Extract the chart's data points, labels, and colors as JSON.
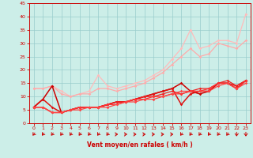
{
  "title": "",
  "xlabel": "Vent moyen/en rafales ( km/h )",
  "xlim": [
    -0.5,
    23.5
  ],
  "ylim": [
    0,
    45
  ],
  "yticks": [
    0,
    5,
    10,
    15,
    20,
    25,
    30,
    35,
    40,
    45
  ],
  "xticks": [
    0,
    1,
    2,
    3,
    4,
    5,
    6,
    7,
    8,
    9,
    10,
    11,
    12,
    13,
    14,
    15,
    16,
    17,
    18,
    19,
    20,
    21,
    22,
    23
  ],
  "bg_color": "#cceee8",
  "grid_color": "#99cccc",
  "lines": [
    {
      "x": [
        0,
        1,
        2,
        3,
        4,
        5,
        6,
        7,
        8,
        9,
        10,
        11,
        12,
        13,
        14,
        15,
        16,
        17,
        18,
        19,
        20,
        21,
        22,
        23
      ],
      "y": [
        13,
        13,
        14,
        12,
        10,
        11,
        12,
        18,
        14,
        13,
        14,
        15,
        16,
        18,
        20,
        24,
        28,
        35,
        28,
        29,
        31,
        31,
        30,
        41
      ],
      "color": "#ffbbbb",
      "lw": 0.9,
      "marker": "D",
      "ms": 1.8
    },
    {
      "x": [
        0,
        1,
        2,
        3,
        4,
        5,
        6,
        7,
        8,
        9,
        10,
        11,
        12,
        13,
        14,
        15,
        16,
        17,
        18,
        19,
        20,
        21,
        22,
        23
      ],
      "y": [
        13,
        13,
        14,
        11,
        10,
        11,
        11,
        13,
        13,
        12,
        13,
        14,
        15,
        17,
        19,
        22,
        25,
        28,
        25,
        26,
        30,
        29,
        28,
        31
      ],
      "color": "#ffaaaa",
      "lw": 0.9,
      "marker": "D",
      "ms": 1.8
    },
    {
      "x": [
        0,
        1,
        2,
        3,
        4,
        5,
        6,
        7,
        8,
        9,
        10,
        11,
        12,
        13,
        14,
        15,
        16,
        17,
        18,
        19,
        20,
        21,
        22,
        23
      ],
      "y": [
        6,
        9,
        14,
        4,
        5,
        6,
        6,
        6,
        7,
        8,
        8,
        9,
        10,
        11,
        12,
        13,
        15,
        12,
        11,
        12,
        15,
        15,
        13,
        16
      ],
      "color": "#cc0000",
      "lw": 1.1,
      "marker": "D",
      "ms": 1.8
    },
    {
      "x": [
        0,
        1,
        2,
        3,
        4,
        5,
        6,
        7,
        8,
        9,
        10,
        11,
        12,
        13,
        14,
        15,
        16,
        17,
        18,
        19,
        20,
        21,
        22,
        23
      ],
      "y": [
        6,
        9,
        6,
        4,
        5,
        6,
        6,
        6,
        7,
        8,
        8,
        9,
        10,
        11,
        12,
        13,
        7,
        11,
        12,
        12,
        15,
        15,
        14,
        16
      ],
      "color": "#dd1111",
      "lw": 1.1,
      "marker": "D",
      "ms": 1.8
    },
    {
      "x": [
        0,
        1,
        2,
        3,
        4,
        5,
        6,
        7,
        8,
        9,
        10,
        11,
        12,
        13,
        14,
        15,
        16,
        17,
        18,
        19,
        20,
        21,
        22,
        23
      ],
      "y": [
        6,
        6,
        4,
        4,
        5,
        6,
        6,
        6,
        7,
        8,
        8,
        9,
        10,
        10,
        11,
        12,
        11,
        12,
        13,
        13,
        15,
        16,
        14,
        16
      ],
      "color": "#ee2222",
      "lw": 0.9,
      "marker": "D",
      "ms": 1.8
    },
    {
      "x": [
        0,
        1,
        2,
        3,
        4,
        5,
        6,
        7,
        8,
        9,
        10,
        11,
        12,
        13,
        14,
        15,
        16,
        17,
        18,
        19,
        20,
        21,
        22,
        23
      ],
      "y": [
        6,
        6,
        4,
        4,
        5,
        6,
        6,
        6,
        7,
        7,
        8,
        9,
        9,
        10,
        10,
        11,
        11,
        12,
        12,
        13,
        15,
        15,
        13,
        16
      ],
      "color": "#ff3333",
      "lw": 0.9,
      "marker": "D",
      "ms": 1.8
    },
    {
      "x": [
        0,
        1,
        2,
        3,
        4,
        5,
        6,
        7,
        8,
        9,
        10,
        11,
        12,
        13,
        14,
        15,
        16,
        17,
        18,
        19,
        20,
        21,
        22,
        23
      ],
      "y": [
        6,
        6,
        4,
        4,
        5,
        5,
        6,
        6,
        6,
        7,
        8,
        8,
        9,
        9,
        10,
        11,
        12,
        12,
        12,
        12,
        14,
        15,
        13,
        15
      ],
      "color": "#ff4444",
      "lw": 0.9,
      "marker": "D",
      "ms": 1.8
    }
  ],
  "arrow_angles": [
    225,
    225,
    225,
    225,
    225,
    225,
    225,
    225,
    225,
    0,
    0,
    0,
    0,
    0,
    0,
    0,
    225,
    225,
    225,
    225,
    225,
    225,
    270,
    270
  ]
}
